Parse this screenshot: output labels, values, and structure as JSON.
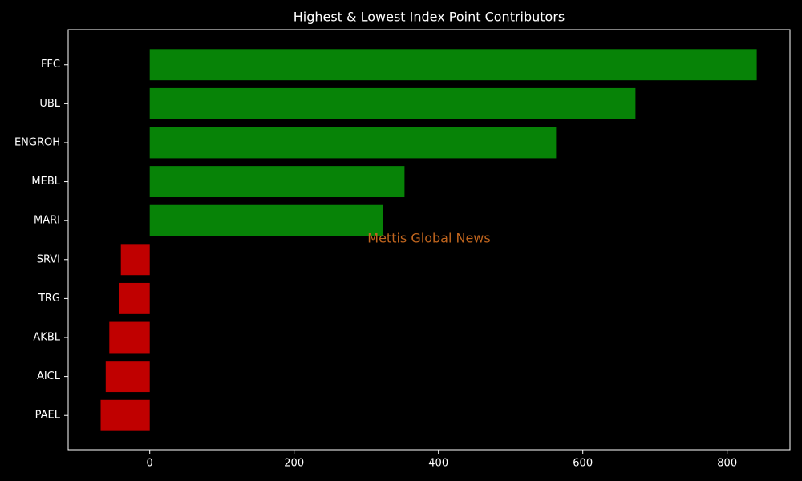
{
  "chart_data": {
    "type": "barh",
    "title": "Highest & Lowest Index Point Contributors",
    "watermark": "Mettis Global News",
    "categories": [
      "FFC",
      "UBL",
      "ENGROH",
      "MEBL",
      "MARI",
      "SRVI",
      "TRG",
      "AKBL",
      "AICL",
      "PAEL"
    ],
    "values": [
      841,
      673,
      563,
      353,
      323,
      -40,
      -43,
      -56,
      -61,
      -68
    ],
    "colors": [
      "#078307",
      "#078307",
      "#078307",
      "#078307",
      "#078307",
      "#c00000",
      "#c00000",
      "#c00000",
      "#c00000",
      "#c00000"
    ],
    "xlim": [
      -113,
      887
    ],
    "xticks": [
      0,
      200,
      400,
      600,
      800
    ],
    "grid": false
  }
}
